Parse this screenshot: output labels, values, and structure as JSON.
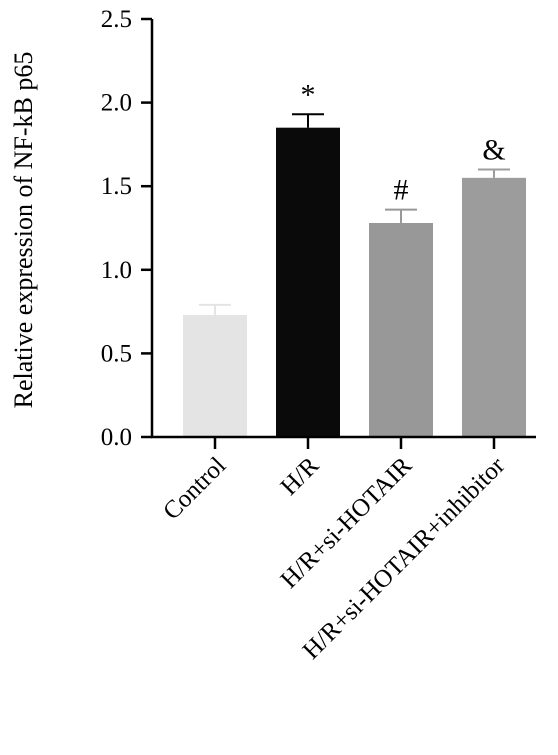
{
  "chart_data": {
    "type": "bar",
    "title": "",
    "xlabel": "",
    "ylabel": "Relative expression of NF-kB p65",
    "ylim": [
      0,
      2.5
    ],
    "yticks": [
      "0.0",
      "0.5",
      "1.0",
      "1.5",
      "2.0",
      "2.5"
    ],
    "categories": [
      "Control",
      "H/R",
      "H/R+si-HOTAIR",
      "H/R+si-HOTAIR+inhibitor"
    ],
    "values": [
      0.73,
      1.85,
      1.28,
      1.55
    ],
    "errors": [
      0.06,
      0.08,
      0.08,
      0.05
    ],
    "annotations": [
      "",
      "*",
      "#",
      "&"
    ],
    "colors": [
      "#e4e4e4",
      "#0a0a0a",
      "#989898",
      "#9c9c9c"
    ],
    "grid": false,
    "legend": "none"
  }
}
